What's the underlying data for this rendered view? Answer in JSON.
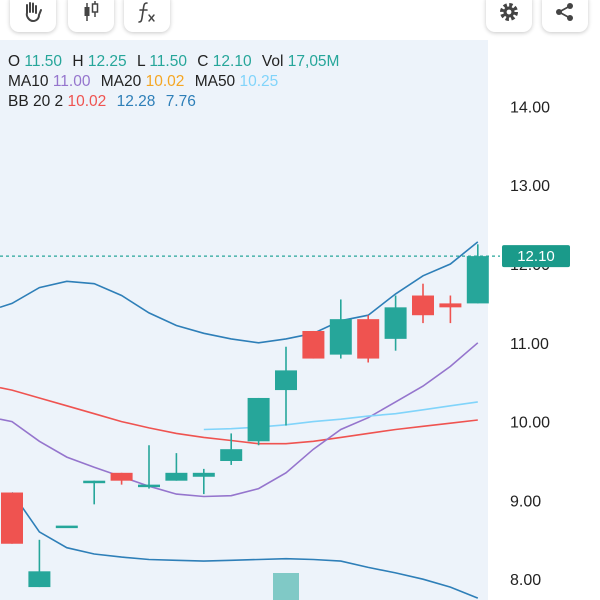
{
  "toolbar": {
    "buttons": [
      {
        "name": "hand-tool",
        "icon": "hand-icon"
      },
      {
        "name": "candlestick-type",
        "icon": "candlestick-icon"
      },
      {
        "name": "indicators",
        "icon": "function-icon"
      },
      {
        "name": "settings",
        "icon": "gear-icon"
      },
      {
        "name": "share",
        "icon": "share-icon"
      }
    ]
  },
  "readout": {
    "ohlc": {
      "o_label": "O",
      "o": "11.50",
      "h_label": "H",
      "h": "12.25",
      "l_label": "L",
      "l": "11.50",
      "c_label": "C",
      "c": "12.10",
      "vol_label": "Vol",
      "vol": "17,05M"
    },
    "ma": {
      "ma10_label": "MA10",
      "ma10": "11.00",
      "ma20_label": "MA20",
      "ma20": "10.02",
      "ma50_label": "MA50",
      "ma50": "10.25"
    },
    "bb": {
      "label": "BB 20 2",
      "mid": "10.02",
      "upper": "12.28",
      "lower": "7.76"
    }
  },
  "colors": {
    "up": "#26a69a",
    "down": "#ef5350",
    "ohlc_value": "#26a69a",
    "ma10": "#9575cd",
    "ma20": "#f5a623",
    "ma50": "#81d4fa",
    "bb_mid": "#ef5350",
    "bb_band": "#2e7fb8",
    "bb_text_upper": "#2e7fb8",
    "bb_text_lower": "#2e7fb8"
  },
  "chart_data": {
    "type": "candlestick",
    "price_axis": {
      "ticks": [
        "14.00",
        "13.00",
        "12.00",
        "11.00",
        "10.00",
        "9.00",
        "8.00"
      ],
      "range": [
        7.75,
        14.75
      ]
    },
    "last_price_label": "12.10",
    "last_price": 12.1,
    "candles": [
      {
        "o": 9.1,
        "h": 9.1,
        "l": 8.45,
        "c": 8.45
      },
      {
        "o": 7.9,
        "h": 8.5,
        "l": 7.9,
        "c": 8.1
      },
      {
        "o": 8.65,
        "h": 8.65,
        "l": 8.65,
        "c": 8.68
      },
      {
        "o": 9.25,
        "h": 9.25,
        "l": 8.95,
        "c": 9.25
      },
      {
        "o": 9.35,
        "h": 9.35,
        "l": 9.2,
        "c": 9.25
      },
      {
        "o": 9.2,
        "h": 9.7,
        "l": 9.15,
        "c": 9.2
      },
      {
        "o": 9.25,
        "h": 9.6,
        "l": 9.25,
        "c": 9.35
      },
      {
        "o": 9.3,
        "h": 9.4,
        "l": 9.08,
        "c": 9.35
      },
      {
        "o": 9.5,
        "h": 9.85,
        "l": 9.45,
        "c": 9.65
      },
      {
        "o": 9.75,
        "h": 10.3,
        "l": 9.7,
        "c": 10.3
      },
      {
        "o": 10.4,
        "h": 10.95,
        "l": 9.95,
        "c": 10.65
      },
      {
        "o": 11.15,
        "h": 11.15,
        "l": 10.8,
        "c": 10.8
      },
      {
        "o": 10.85,
        "h": 11.55,
        "l": 10.8,
        "c": 11.3
      },
      {
        "o": 11.3,
        "h": 11.35,
        "l": 10.75,
        "c": 10.8
      },
      {
        "o": 11.05,
        "h": 11.6,
        "l": 10.9,
        "c": 11.45
      },
      {
        "o": 11.6,
        "h": 11.75,
        "l": 11.25,
        "c": 11.35
      },
      {
        "o": 11.5,
        "h": 11.6,
        "l": 11.25,
        "c": 11.45
      },
      {
        "o": 11.5,
        "h": 12.25,
        "l": 11.5,
        "c": 12.1
      }
    ],
    "volume": [
      {
        "index": 10,
        "value": 17.05,
        "direction": "up"
      }
    ],
    "series": [
      {
        "name": "BB upper",
        "points": [
          [
            0,
            11.5
          ],
          [
            1,
            11.7
          ],
          [
            2,
            11.78
          ],
          [
            3,
            11.75
          ],
          [
            4,
            11.6
          ],
          [
            5,
            11.38
          ],
          [
            6,
            11.22
          ],
          [
            7,
            11.12
          ],
          [
            8,
            11.05
          ],
          [
            9,
            11.0
          ],
          [
            10,
            11.05
          ],
          [
            11,
            11.12
          ],
          [
            12,
            11.28
          ],
          [
            13,
            11.35
          ],
          [
            14,
            11.62
          ],
          [
            15,
            11.85
          ],
          [
            16,
            12.0
          ],
          [
            17,
            12.28
          ]
        ]
      },
      {
        "name": "BB lower",
        "points": [
          [
            0,
            9.1
          ],
          [
            1,
            8.6
          ],
          [
            2,
            8.4
          ],
          [
            3,
            8.32
          ],
          [
            4,
            8.28
          ],
          [
            5,
            8.25
          ],
          [
            6,
            8.24
          ],
          [
            7,
            8.23
          ],
          [
            8,
            8.24
          ],
          [
            9,
            8.25
          ],
          [
            10,
            8.26
          ],
          [
            11,
            8.25
          ],
          [
            12,
            8.23
          ],
          [
            13,
            8.15
          ],
          [
            14,
            8.08
          ],
          [
            15,
            8.0
          ],
          [
            16,
            7.9
          ],
          [
            17,
            7.76
          ]
        ]
      },
      {
        "name": "MA20",
        "points": [
          [
            0,
            10.4
          ],
          [
            1,
            10.3
          ],
          [
            2,
            10.2
          ],
          [
            3,
            10.1
          ],
          [
            4,
            10.0
          ],
          [
            5,
            9.92
          ],
          [
            6,
            9.85
          ],
          [
            7,
            9.8
          ],
          [
            8,
            9.76
          ],
          [
            9,
            9.72
          ],
          [
            10,
            9.72
          ],
          [
            11,
            9.75
          ],
          [
            12,
            9.8
          ],
          [
            13,
            9.85
          ],
          [
            14,
            9.9
          ],
          [
            15,
            9.94
          ],
          [
            16,
            9.98
          ],
          [
            17,
            10.02
          ]
        ]
      },
      {
        "name": "MA10",
        "points": [
          [
            0,
            10.0
          ],
          [
            1,
            9.75
          ],
          [
            2,
            9.55
          ],
          [
            3,
            9.42
          ],
          [
            4,
            9.3
          ],
          [
            5,
            9.18
          ],
          [
            6,
            9.08
          ],
          [
            7,
            9.05
          ],
          [
            8,
            9.06
          ],
          [
            9,
            9.15
          ],
          [
            10,
            9.35
          ],
          [
            11,
            9.65
          ],
          [
            12,
            9.9
          ],
          [
            13,
            10.05
          ],
          [
            14,
            10.25
          ],
          [
            15,
            10.45
          ],
          [
            16,
            10.7
          ],
          [
            17,
            11.0
          ]
        ]
      },
      {
        "name": "MA50",
        "points": [
          [
            7,
            9.9
          ],
          [
            8,
            9.91
          ],
          [
            9,
            9.93
          ],
          [
            10,
            9.96
          ],
          [
            11,
            10.0
          ],
          [
            12,
            10.03
          ],
          [
            13,
            10.07
          ],
          [
            14,
            10.1
          ],
          [
            15,
            10.15
          ],
          [
            16,
            10.2
          ],
          [
            17,
            10.25
          ]
        ]
      }
    ]
  }
}
